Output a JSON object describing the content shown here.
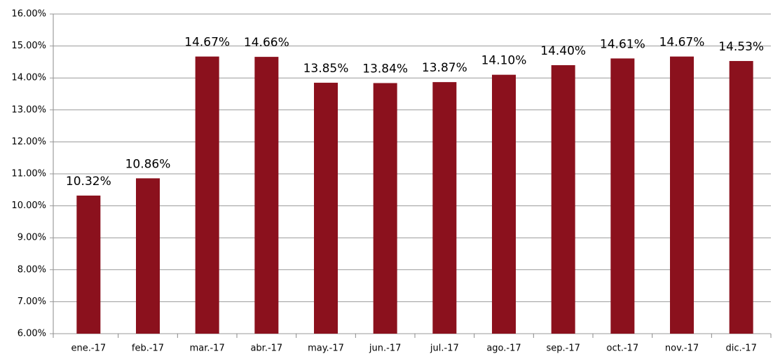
{
  "chart_data": {
    "type": "bar",
    "categories": [
      "ene.-17",
      "feb.-17",
      "mar.-17",
      "abr.-17",
      "may.-17",
      "jun.-17",
      "jul.-17",
      "ago.-17",
      "sep.-17",
      "oct.-17",
      "nov.-17",
      "dic.-17"
    ],
    "values": [
      10.32,
      10.86,
      14.67,
      14.66,
      13.85,
      13.84,
      13.87,
      14.1,
      14.4,
      14.61,
      14.67,
      14.53
    ],
    "value_labels": [
      "10.32%",
      "10.86%",
      "14.67%",
      "14.66%",
      "13.85%",
      "13.84%",
      "13.87%",
      "14.10%",
      "14.40%",
      "14.61%",
      "14.67%",
      "14.53%"
    ],
    "color": "#8b111d",
    "ylim": [
      6,
      16
    ],
    "yticks": [
      {
        "value": 6,
        "label": "6.00%"
      },
      {
        "value": 7,
        "label": "7.00%"
      },
      {
        "value": 8,
        "label": "8.00%"
      },
      {
        "value": 9,
        "label": "9.00%"
      },
      {
        "value": 10,
        "label": "10.00%"
      },
      {
        "value": 11,
        "label": "11.00%"
      },
      {
        "value": 12,
        "label": "12.00%"
      },
      {
        "value": 13,
        "label": "13.00%"
      },
      {
        "value": 14,
        "label": "14.00%"
      },
      {
        "value": 15,
        "label": "15.00%"
      },
      {
        "value": 16,
        "label": "16.00%"
      }
    ],
    "grid": true
  }
}
